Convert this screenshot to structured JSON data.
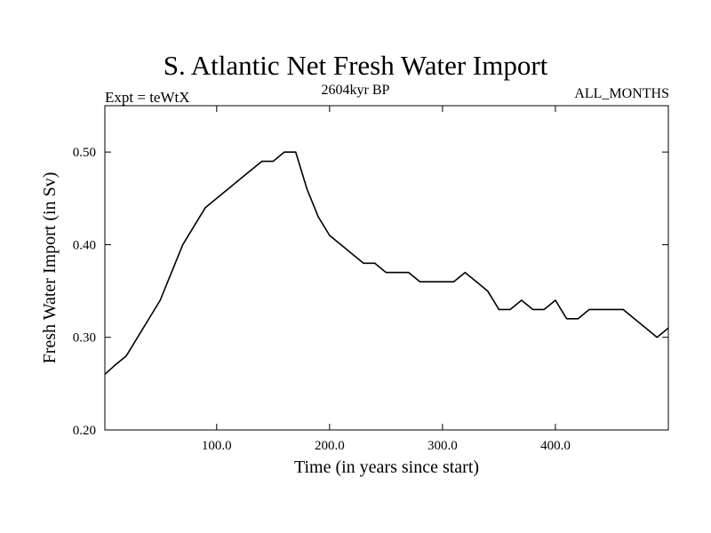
{
  "chart_data": {
    "type": "line",
    "title": "S. Atlantic Net Fresh Water Import",
    "subtitle_left": "Expt = teWtX",
    "subtitle_center": "2604kyr BP",
    "subtitle_right": "ALL_MONTHS",
    "xlabel": "Time (in years since start)",
    "ylabel": "Fresh Water Import (in Sv)",
    "xlim": [
      1,
      500
    ],
    "ylim": [
      0.2,
      0.55
    ],
    "xticks": [
      100,
      200,
      300,
      400
    ],
    "xtick_labels": [
      "100.0",
      "200.0",
      "300.0",
      "400.0"
    ],
    "yticks": [
      0.2,
      0.3,
      0.4,
      0.5
    ],
    "ytick_labels": [
      "0.20",
      "0.30",
      "0.40",
      "0.50"
    ],
    "series": [
      {
        "name": "fresh water import",
        "x": [
          1,
          10,
          20,
          30,
          40,
          50,
          60,
          70,
          80,
          90,
          100,
          110,
          120,
          130,
          140,
          150,
          160,
          170,
          180,
          190,
          200,
          210,
          220,
          230,
          240,
          250,
          260,
          270,
          280,
          290,
          300,
          310,
          320,
          330,
          340,
          350,
          360,
          370,
          380,
          390,
          400,
          410,
          420,
          430,
          440,
          450,
          460,
          470,
          480,
          490,
          500
        ],
        "values": [
          0.26,
          0.27,
          0.28,
          0.3,
          0.32,
          0.34,
          0.37,
          0.4,
          0.42,
          0.44,
          0.45,
          0.46,
          0.47,
          0.48,
          0.49,
          0.49,
          0.5,
          0.5,
          0.46,
          0.43,
          0.41,
          0.4,
          0.39,
          0.38,
          0.38,
          0.37,
          0.37,
          0.37,
          0.36,
          0.36,
          0.36,
          0.36,
          0.37,
          0.36,
          0.35,
          0.33,
          0.33,
          0.34,
          0.33,
          0.33,
          0.34,
          0.32,
          0.32,
          0.33,
          0.33,
          0.33,
          0.33,
          0.32,
          0.31,
          0.3,
          0.31
        ]
      }
    ]
  }
}
